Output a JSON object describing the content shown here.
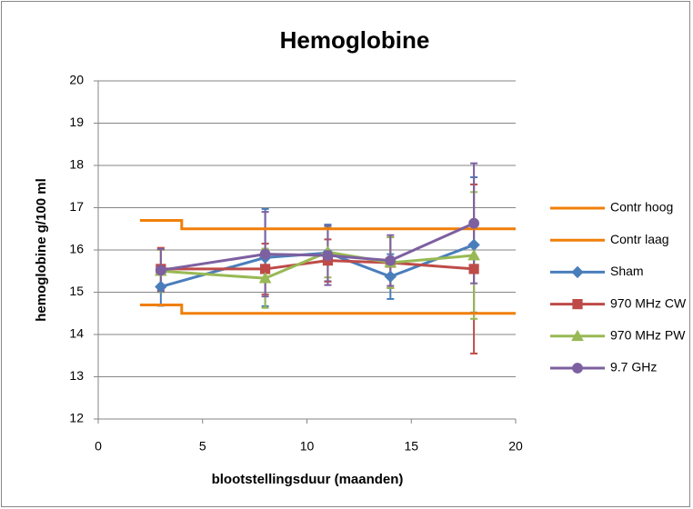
{
  "chart_data": {
    "type": "line",
    "title": "Hemoglobine",
    "x_label": "blootstellingsduur (maanden)",
    "y_label": "hemoglobine g/100 ml",
    "x": [
      3,
      8,
      11,
      14,
      18
    ],
    "series": [
      {
        "name": "Contr hoog",
        "color": "#f07f09",
        "marker": "none",
        "x": [
          2,
          4,
          4,
          20
        ],
        "values": [
          16.7,
          16.7,
          16.5,
          16.5
        ]
      },
      {
        "name": "Contr laag",
        "color": "#f07f09",
        "marker": "none",
        "x": [
          2,
          4,
          4,
          20
        ],
        "values": [
          14.7,
          14.7,
          14.5,
          14.5
        ]
      },
      {
        "name": "Sham",
        "color": "#4a7ebb",
        "marker": "diamond",
        "values": [
          15.13,
          15.82,
          15.93,
          15.37,
          16.12
        ],
        "errors": [
          0.45,
          1.15,
          0.67,
          0.53,
          1.6
        ]
      },
      {
        "name": "970 MHz CW",
        "color": "#be4b48",
        "marker": "square",
        "values": [
          15.55,
          15.55,
          15.75,
          15.7,
          15.55
        ],
        "errors": [
          0.5,
          0.6,
          0.5,
          0.6,
          2.0
        ]
      },
      {
        "name": "970 MHz PW",
        "color": "#98b954",
        "marker": "triangle",
        "values": [
          15.5,
          15.33,
          15.95,
          15.7,
          15.87
        ],
        "errors": [
          0.5,
          0.7,
          0.6,
          0.6,
          1.5
        ]
      },
      {
        "name": "9.7 GHz",
        "color": "#7d60a0",
        "marker": "circle",
        "values": [
          15.52,
          15.9,
          15.87,
          15.75,
          16.63
        ],
        "errors": [
          0.5,
          1.0,
          0.7,
          0.6,
          1.42
        ]
      }
    ],
    "xlim": [
      0,
      20
    ],
    "xticks": [
      0,
      5,
      10,
      15,
      20
    ],
    "ylim": [
      12,
      20
    ],
    "yticks": [
      12,
      13,
      14,
      15,
      16,
      17,
      18,
      19,
      20
    ],
    "grid": true,
    "legend": "right"
  }
}
